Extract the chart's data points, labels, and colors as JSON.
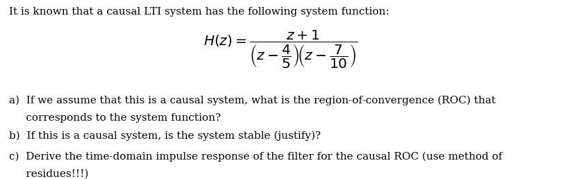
{
  "intro_text": "It is known that a causal LTI system has the following system function:",
  "line_a1": "a)  If we assume that this is a causal system, what is the region-of-convergence (ROC) that",
  "line_a2": "     corresponds to the system function?",
  "line_b": "b)  If this is a causal system, is the system stable (justify)?",
  "line_c1": "c)  Derive the time-domain impulse response of the filter for the causal ROC (use method of",
  "line_c2": "     residues!!!)",
  "formula": "$H(z) = \\dfrac{z+1}{\\left(z-\\dfrac{4}{5}\\right)\\!\\left(z-\\dfrac{7}{10}\\right)}$",
  "background_color": "#ffffff",
  "text_color": "#000000",
  "fontsize": 11.0,
  "formula_fontsize": 14.5,
  "fig_width": 8.08,
  "fig_height": 2.58,
  "dpi": 100
}
